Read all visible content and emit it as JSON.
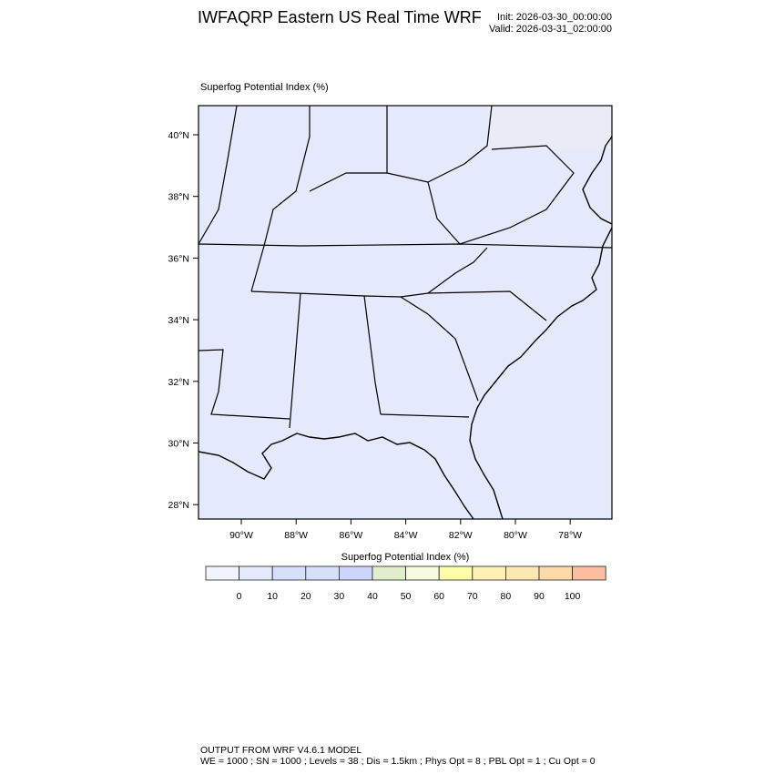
{
  "header": {
    "title": "IWFAQRP Eastern US Real Time WRF",
    "init": "Init: 2026-03-30_00:00:00",
    "valid": "Valid: 2026-03-31_02:00:00"
  },
  "map": {
    "field_label": "Superfog Potential Index   (%)",
    "region": "Southeastern United States",
    "lon_ticks": [
      "90°W",
      "88°W",
      "86°W",
      "84°W",
      "82°W",
      "80°W",
      "78°W"
    ],
    "lat_ticks": [
      "40°N",
      "38°N",
      "36°N",
      "34°N",
      "32°N",
      "30°N",
      "28°N"
    ],
    "background_color": "#e4e9fb"
  },
  "colorbar": {
    "title": "Superfog Potential Index  (%)",
    "labels": [
      "0",
      "10",
      "20",
      "30",
      "40",
      "50",
      "60",
      "70",
      "80",
      "90",
      "100"
    ],
    "colors": [
      "#f1f4fa",
      "#e4e9fb",
      "#d5e0fb",
      "#d5e0fb",
      "#ccd5fb",
      "#e0eec9",
      "#f5fbdc",
      "#fffca9",
      "#feefb3",
      "#fde9b0",
      "#fcd9a6",
      "#fdbea0"
    ]
  },
  "footer": {
    "line1": "OUTPUT FROM WRF V4.6.1 MODEL",
    "line2": "WE = 1000 ; SN = 1000 ; Levels = 38 ; Dis = 1.5km ; Phys Opt = 8 ; PBL Opt = 1 ; Cu Opt = 0"
  }
}
